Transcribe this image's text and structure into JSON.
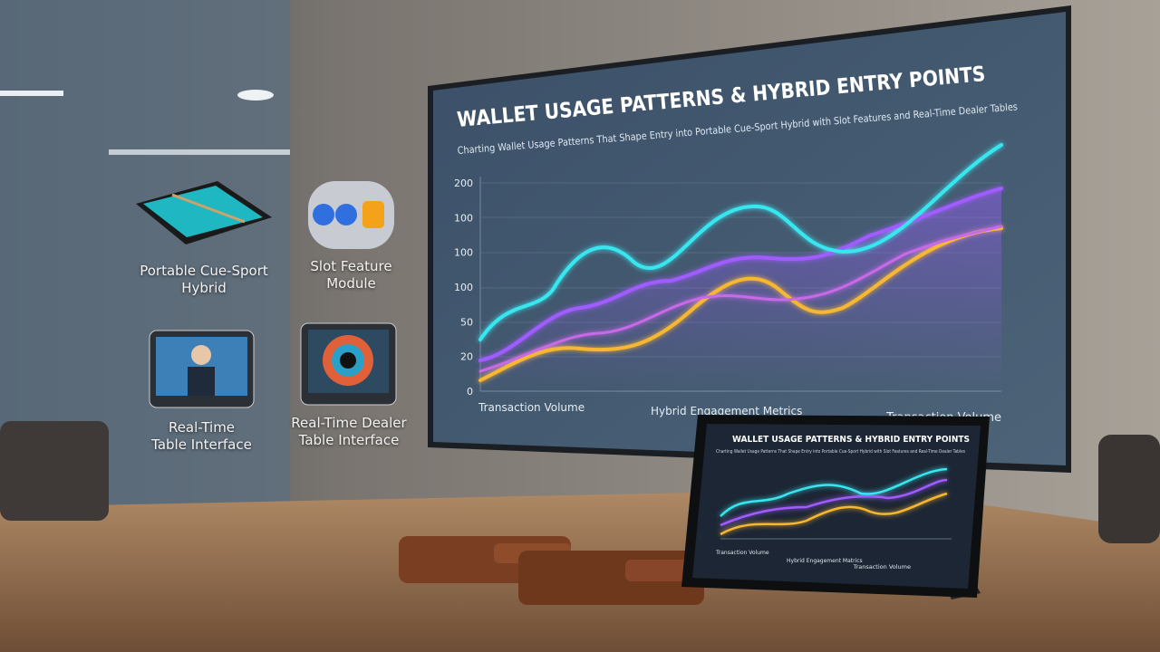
{
  "screen": {
    "title": "WALLET USAGE PATTERNS & HYBRID ENTRY POINTS",
    "subtitle": "Charting Wallet Usage Patterns That Shape Entry into Portable Cue-Sport Hybrid with Slot Features and Real-Time Dealer Tables",
    "y_labels": [
      "200",
      "100",
      "100",
      "100",
      "50",
      "20",
      "0"
    ],
    "x_labels": [
      "Transaction Volume",
      "Hybrid Engagement Metrics",
      "Transaction Volume"
    ]
  },
  "icons": [
    {
      "label": "Portable Cue-Sport Hybrid"
    },
    {
      "label": "Slot Feature Module"
    },
    {
      "label": "Real-Time Table Interface"
    },
    {
      "label": "Real-Time Dealer Table Interface"
    }
  ],
  "tablet": {
    "title": "WALLET USAGE PATTERNS & HYBRID ENTRY POINTS",
    "subtitle": "Charting Wallet Usage Patterns That Shape Entry into Portable Cue-Sport Hybrid with Slot Features and Real-Time Dealer Tables",
    "x_labels": [
      "Transaction Volume",
      "Hybrid Engagement Matrics",
      "Transaction Volume"
    ]
  }
}
